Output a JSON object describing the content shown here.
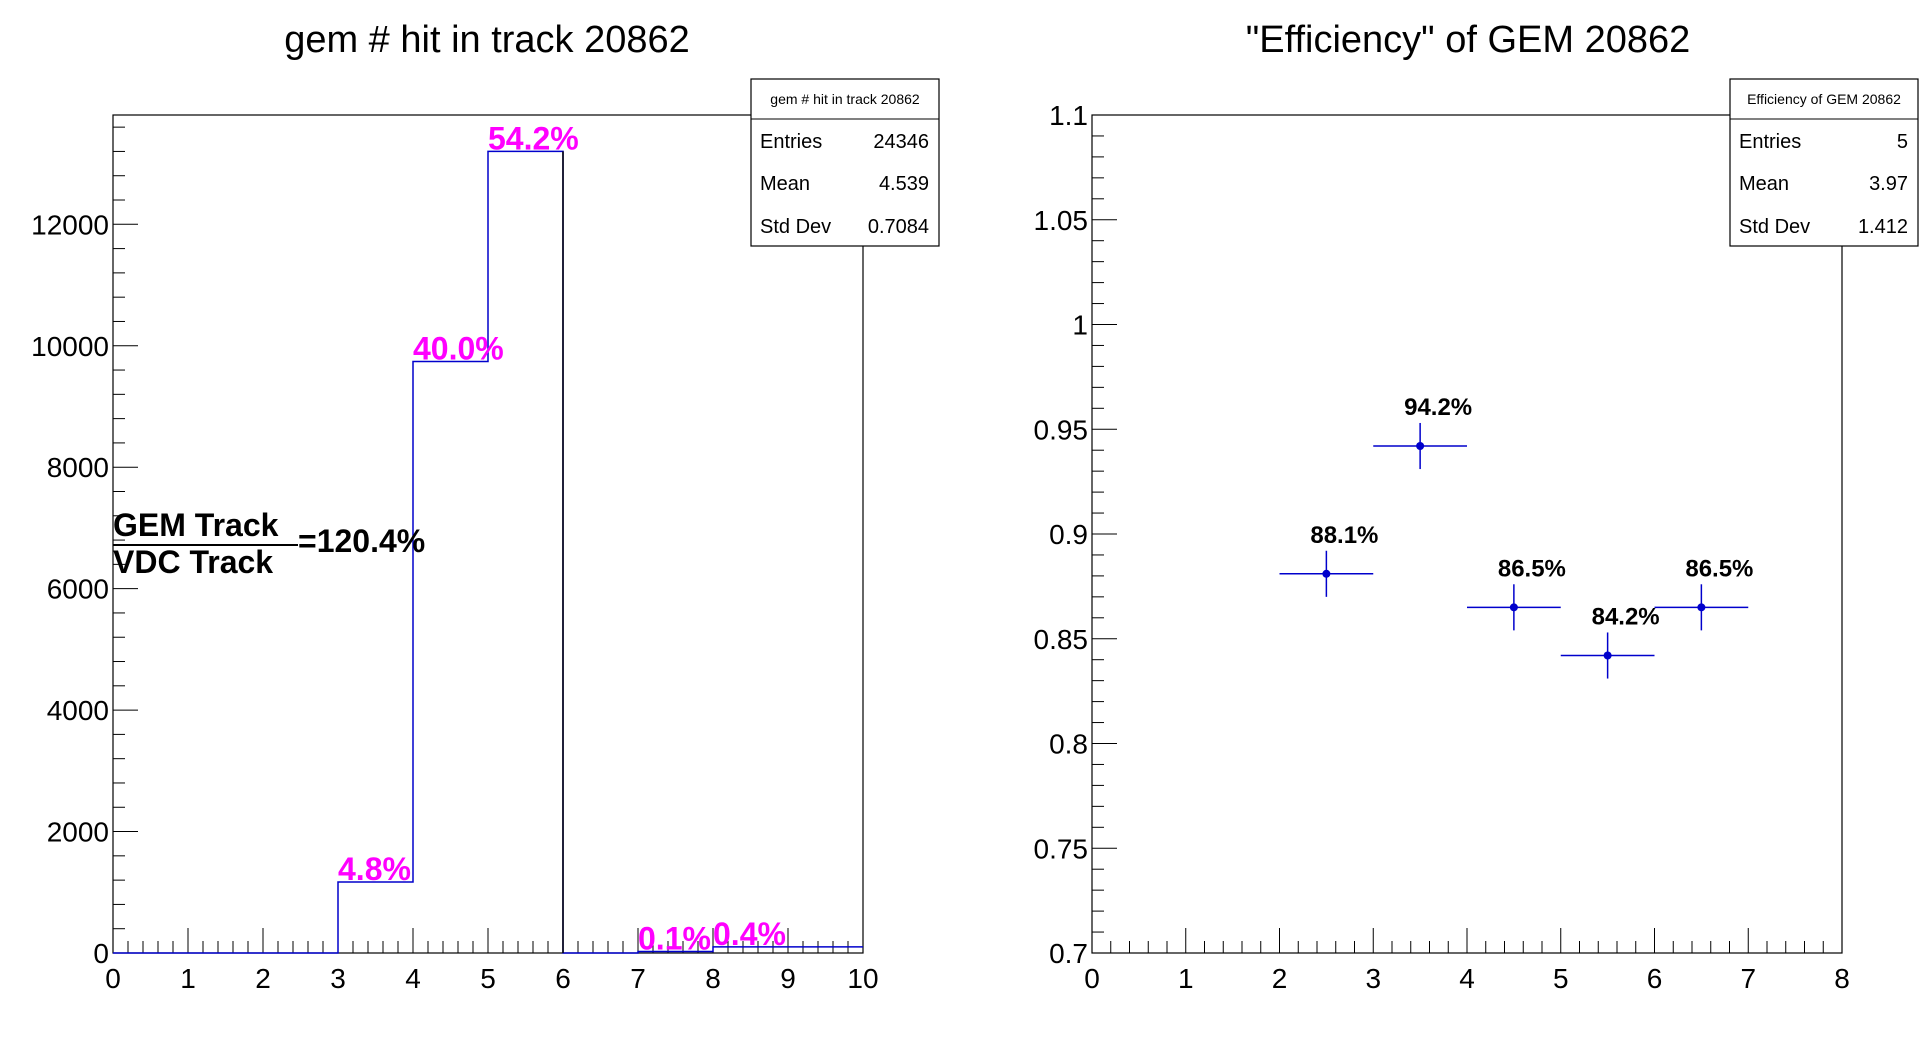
{
  "chart_data": [
    {
      "type": "bar",
      "title": "gem # hit in track 20862",
      "xlabel": "",
      "ylabel": "",
      "xlim": [
        0,
        10
      ],
      "ylim": [
        0,
        13800
      ],
      "xticks": [
        "0",
        "1",
        "2",
        "3",
        "4",
        "5",
        "6",
        "7",
        "8",
        "9",
        "10"
      ],
      "yticks": [
        "0",
        "2000",
        "4000",
        "6000",
        "8000",
        "10000",
        "12000"
      ],
      "ytick_values": [
        0,
        2000,
        4000,
        6000,
        8000,
        10000,
        12000
      ],
      "bins": [
        {
          "x0": 0,
          "x1": 1,
          "value": 0
        },
        {
          "x0": 1,
          "x1": 2,
          "value": 0
        },
        {
          "x0": 2,
          "x1": 3,
          "value": 0
        },
        {
          "x0": 3,
          "x1": 4,
          "value": 1170
        },
        {
          "x0": 4,
          "x1": 5,
          "value": 9740
        },
        {
          "x0": 5,
          "x1": 6,
          "value": 13200
        },
        {
          "x0": 6,
          "x1": 7,
          "value": 0
        },
        {
          "x0": 7,
          "x1": 8,
          "value": 25
        },
        {
          "x0": 8,
          "x1": 9,
          "value": 100
        },
        {
          "x0": 9,
          "x1": 10,
          "value": 100
        }
      ],
      "annotations": [
        {
          "text": "4.8%",
          "x": 3.0,
          "y": 1170
        },
        {
          "text": "40.0%",
          "x": 4.0,
          "y": 9740
        },
        {
          "text": "54.2%",
          "x": 5.0,
          "y": 13200
        },
        {
          "text": "0.1%",
          "x": 7.0,
          "y": 25
        },
        {
          "text": "0.4%",
          "x": 8.0,
          "y": 100
        }
      ],
      "line_color": "#0000cc",
      "label_color": "#ff00ff",
      "stats": {
        "title": "gem # hit in track 20862",
        "rows": [
          {
            "label": "Entries",
            "value": "24346"
          },
          {
            "label": "Mean",
            "value": "4.539"
          },
          {
            "label": "Std Dev",
            "value": "0.7084"
          }
        ]
      },
      "ratio": {
        "numerator": "GEM Track",
        "denominator": "VDC Track",
        "value": "=120.4%"
      }
    },
    {
      "type": "scatter",
      "title": "\"Efficiency\" of GEM 20862",
      "xlabel": "",
      "ylabel": "",
      "xlim": [
        0,
        8
      ],
      "ylim": [
        0.7,
        1.1
      ],
      "xticks": [
        "0",
        "1",
        "2",
        "3",
        "4",
        "5",
        "6",
        "7",
        "8"
      ],
      "yticks": [
        "0.7",
        "0.75",
        "0.8",
        "0.85",
        "0.9",
        "0.95",
        "1",
        "1.05",
        "1.1"
      ],
      "ytick_values": [
        0.7,
        0.75,
        0.8,
        0.85,
        0.9,
        0.95,
        1.0,
        1.05,
        1.1
      ],
      "points": [
        {
          "x": 2.5,
          "y": 0.881,
          "xerr": 0.5,
          "yerr": 0.011,
          "label": "88.1%"
        },
        {
          "x": 3.5,
          "y": 0.942,
          "xerr": 0.5,
          "yerr": 0.011,
          "label": "94.2%"
        },
        {
          "x": 4.5,
          "y": 0.865,
          "xerr": 0.5,
          "yerr": 0.011,
          "label": "86.5%"
        },
        {
          "x": 5.5,
          "y": 0.842,
          "xerr": 0.5,
          "yerr": 0.011,
          "label": "84.2%"
        },
        {
          "x": 6.5,
          "y": 0.865,
          "xerr": 0.5,
          "yerr": 0.011,
          "label": "86.5%"
        }
      ],
      "marker_color": "#0000cc",
      "stats": {
        "title": "Efficiency of GEM 20862",
        "rows": [
          {
            "label": "Entries",
            "value": "5"
          },
          {
            "label": "Mean",
            "value": "3.97"
          },
          {
            "label": "Std Dev",
            "value": "1.412"
          }
        ]
      }
    }
  ]
}
